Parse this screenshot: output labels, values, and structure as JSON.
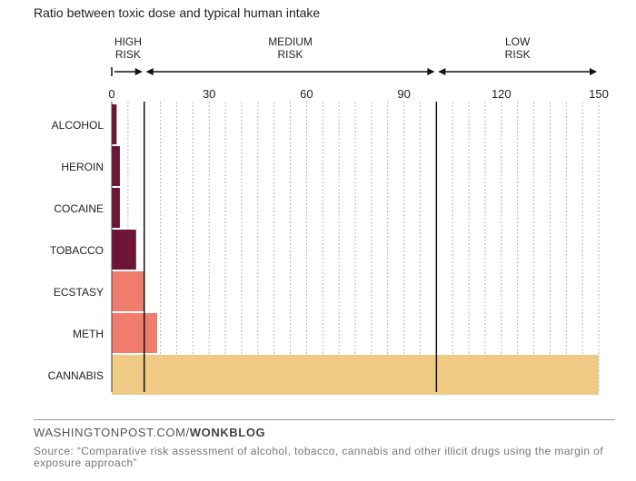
{
  "chart_data": {
    "type": "bar",
    "orientation": "horizontal",
    "title": "Ratio between toxic dose and typical human intake",
    "categories": [
      "ALCOHOL",
      "HEROIN",
      "COCAINE",
      "TOBACCO",
      "ECSTASY",
      "METH",
      "CANNABIS"
    ],
    "values": [
      1.5,
      2.5,
      2.5,
      7.5,
      10,
      14,
      150
    ],
    "xlim": [
      0,
      150
    ],
    "xticks": [
      0,
      30,
      60,
      90,
      120,
      150
    ],
    "risk_zones": [
      {
        "label_line1": "HIGH",
        "label_line2": "RISK",
        "from": 0,
        "to": 10
      },
      {
        "label_line1": "MEDIUM",
        "label_line2": "RISK",
        "from": 10,
        "to": 100
      },
      {
        "label_line1": "LOW",
        "label_line2": "RISK",
        "from": 100,
        "to": 150
      }
    ],
    "colors": {
      "high_risk": "#6e1537",
      "medium_risk": "#ef7c6c",
      "low_risk": "#efca85"
    }
  },
  "footer": {
    "brand_main": "WASHINGTONPOST.COM/",
    "brand_section": "WONKBLOG",
    "source": "Source: “Comparative risk assessment of alcohol, tobacco, cannabis and other illicit drugs using the margin of exposure approach”"
  }
}
